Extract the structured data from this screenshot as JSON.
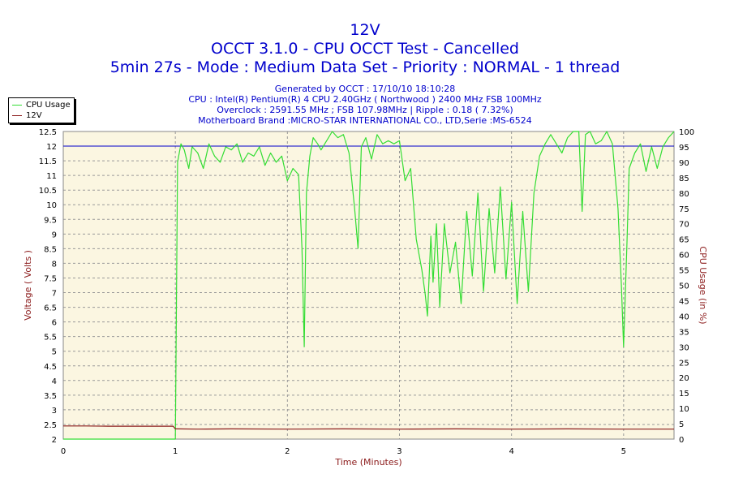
{
  "header": {
    "title": "12V",
    "subtitle": "OCCT 3.1.0 - CPU OCCT Test - Cancelled",
    "mode_line": "5min 27s - Mode : Medium Data Set - Priority : NORMAL - 1 thread"
  },
  "info": {
    "generated": "Generated by OCCT : 17/10/10 18:10:28",
    "cpu": "CPU : Intel(R) Pentium(R) 4 CPU 2.40GHz ( Northwood ) 2400 MHz FSB 100MHz",
    "overclock": "Overclock : 2591.55 MHz ; FSB 107.98MHz | Ripple : 0.18 ( 7.32%)",
    "motherboard": "Motherboard Brand :MICRO-STAR INTERNATIONAL CO., LTD,Serie :MS-6524"
  },
  "colors": {
    "cpu_usage": "#33dd33",
    "voltage": "#8b1a1a",
    "reference": "#0000cc",
    "plot_bg": "#fbf6e1",
    "axis_title": "#8b1a1a"
  },
  "chart_data": {
    "type": "line",
    "xlabel": "Time (Minutes)",
    "ylabel": "Voltage ( Volts )",
    "y2label": "CPU Usage (in %)",
    "xlim": [
      0,
      5.45
    ],
    "ylim": [
      2,
      12.5
    ],
    "y2lim": [
      0,
      100
    ],
    "x_ticks": [
      "0",
      "1",
      "2",
      "3",
      "4",
      "5"
    ],
    "y_ticks": [
      "2",
      "2.5",
      "3",
      "3.5",
      "4",
      "4.5",
      "5",
      "5.5",
      "6",
      "6.5",
      "7",
      "7.5",
      "8",
      "8.5",
      "9",
      "9.5",
      "10",
      "10.5",
      "11",
      "11.5",
      "12",
      "12.5"
    ],
    "y2_ticks": [
      "0",
      "5",
      "10",
      "15",
      "20",
      "25",
      "30",
      "35",
      "40",
      "45",
      "50",
      "55",
      "60",
      "65",
      "70",
      "75",
      "80",
      "85",
      "90",
      "95",
      "100"
    ],
    "grid": true,
    "legend": "top-left",
    "reference_line": {
      "axis": "left",
      "value": 12
    },
    "series": [
      {
        "name": "CPU Usage",
        "axis": "right",
        "x": [
          0,
          0.98,
          1.0,
          1.02,
          1.05,
          1.08,
          1.12,
          1.15,
          1.2,
          1.25,
          1.3,
          1.35,
          1.4,
          1.45,
          1.5,
          1.55,
          1.6,
          1.65,
          1.7,
          1.75,
          1.8,
          1.85,
          1.9,
          1.95,
          2.0,
          2.05,
          2.1,
          2.13,
          2.15,
          2.17,
          2.2,
          2.23,
          2.27,
          2.3,
          2.35,
          2.4,
          2.45,
          2.5,
          2.55,
          2.6,
          2.63,
          2.66,
          2.7,
          2.75,
          2.8,
          2.85,
          2.9,
          2.95,
          3.0,
          3.05,
          3.1,
          3.15,
          3.2,
          3.23,
          3.25,
          3.28,
          3.3,
          3.33,
          3.36,
          3.4,
          3.45,
          3.5,
          3.55,
          3.6,
          3.65,
          3.7,
          3.75,
          3.8,
          3.85,
          3.9,
          3.95,
          4.0,
          4.05,
          4.1,
          4.15,
          4.2,
          4.25,
          4.3,
          4.35,
          4.4,
          4.45,
          4.5,
          4.55,
          4.6,
          4.63,
          4.66,
          4.7,
          4.75,
          4.8,
          4.85,
          4.9,
          4.95,
          4.98,
          5.0,
          5.03,
          5.05,
          5.1,
          5.15,
          5.2,
          5.25,
          5.3,
          5.35,
          5.4,
          5.45
        ],
        "values": [
          0,
          0,
          0,
          90,
          96,
          94,
          88,
          95,
          93,
          88,
          96,
          92,
          90,
          95,
          94,
          96,
          90,
          93,
          92,
          95,
          89,
          93,
          90,
          92,
          84,
          88,
          86,
          62,
          30,
          80,
          92,
          98,
          96,
          94,
          97,
          100,
          98,
          99,
          93,
          75,
          62,
          95,
          98,
          91,
          99,
          96,
          97,
          96,
          97,
          84,
          88,
          65,
          55,
          47,
          40,
          66,
          51,
          70,
          43,
          70,
          54,
          64,
          44,
          74,
          53,
          80,
          48,
          75,
          54,
          82,
          52,
          77,
          44,
          74,
          48,
          80,
          92,
          96,
          99,
          96,
          93,
          98,
          100,
          100,
          74,
          99,
          100,
          96,
          97,
          100,
          96,
          75,
          50,
          30,
          64,
          88,
          93,
          96,
          87,
          95,
          88,
          95,
          98,
          100
        ]
      },
      {
        "name": "12V",
        "axis": "left",
        "x": [
          0,
          0.2,
          0.4,
          0.6,
          0.8,
          0.98,
          1.0,
          1.02,
          1.2,
          1.5,
          2.0,
          2.5,
          3.0,
          3.5,
          4.0,
          4.5,
          5.0,
          5.45
        ],
        "values": [
          2.45,
          2.45,
          2.44,
          2.44,
          2.44,
          2.44,
          2.35,
          2.35,
          2.34,
          2.35,
          2.34,
          2.35,
          2.34,
          2.35,
          2.34,
          2.35,
          2.34,
          2.34
        ]
      }
    ]
  }
}
